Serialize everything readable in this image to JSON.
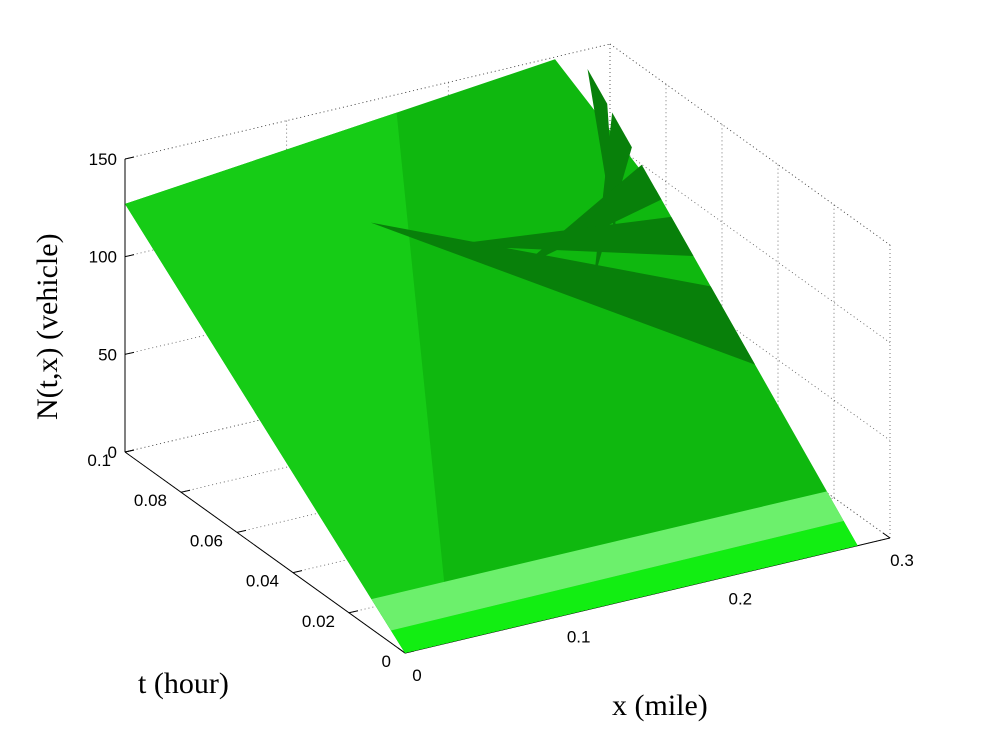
{
  "chart_data": {
    "type": "surface3d",
    "title": "",
    "xlabel": "x (mile)",
    "ylabel": "t (hour)",
    "zlabel": "N(t,x) (vehicle)",
    "xlim": [
      0,
      0.3
    ],
    "ylim": [
      0,
      0.1
    ],
    "zlim": [
      0,
      150
    ],
    "x_ticks": [
      "0",
      "0.1",
      "0.2",
      "0.3"
    ],
    "y_ticks": [
      "0",
      "0.02",
      "0.04",
      "0.06",
      "0.08",
      "0.1"
    ],
    "z_ticks": [
      "0",
      "50",
      "100",
      "150"
    ],
    "grid": true,
    "surface_corners": [
      {
        "x": 0,
        "t": 0,
        "N": 0
      },
      {
        "x": 0.28,
        "t": 0,
        "N": 0
      },
      {
        "x": 0.28,
        "t": 0.1,
        "N": 150
      },
      {
        "x": 0,
        "t": 0.1,
        "N": 127
      }
    ],
    "colors": {
      "surface": "#0fb80f",
      "surface_light": "#16cc16",
      "surface_shadow": "#08800a",
      "band_light": "#6cf06c",
      "band_bright": "#12ee12"
    }
  }
}
